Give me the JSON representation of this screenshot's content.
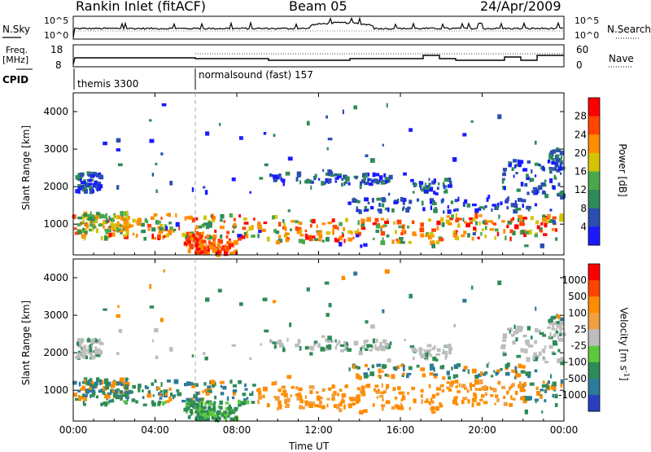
{
  "header": {
    "station": "Rankin Inlet (fitACF)",
    "beam": "Beam 05",
    "date": "24/Apr/2009"
  },
  "noise_panel": {
    "left_label": "N.Sky",
    "left_ticks": [
      "10^5",
      "10^0"
    ],
    "right_label": "N.Search",
    "right_ticks": [
      "10^5",
      "10^0"
    ]
  },
  "freq_panel": {
    "left_label_line1": "Freq.",
    "left_label_line2": "[MHz]",
    "left_ticks": [
      "18",
      "8"
    ],
    "right_label": "Nave",
    "right_ticks": [
      "60",
      "0"
    ]
  },
  "cpid": {
    "label": "CPID",
    "modes": [
      {
        "name": "themis 3300",
        "start_hour": 0
      },
      {
        "name": "normalsound (fast) 157",
        "start_hour": 6
      }
    ]
  },
  "chart_data": [
    {
      "type": "heatmap",
      "panel": "power",
      "ylabel": "Slant Range [km]",
      "yticks": [
        1000,
        2000,
        3000,
        4000
      ],
      "ylim": [
        180,
        4500
      ],
      "xlabel": "Time UT",
      "xticks": [
        "00:00",
        "04:00",
        "08:00",
        "12:00",
        "16:00",
        "20:00",
        "00:00"
      ],
      "xlim_hours": [
        0,
        24
      ],
      "colorbar_label": "Power [dB]",
      "colorbar_ticks": [
        "4",
        "8",
        "12",
        "16",
        "20",
        "24",
        "28"
      ],
      "colorbar_colors": [
        "#1a1aff",
        "#2a4fb0",
        "#2e8b57",
        "#4aa84a",
        "#d4c400",
        "#ff8c00",
        "#ff4500",
        "#ff0000"
      ]
    },
    {
      "type": "heatmap",
      "panel": "velocity",
      "ylabel": "Slant Range [km]",
      "yticks": [
        1000,
        2000,
        3000,
        4000
      ],
      "ylim": [
        180,
        4500
      ],
      "xlabel": "Time UT",
      "xticks": [
        "00:00",
        "04:00",
        "08:00",
        "12:00",
        "16:00",
        "20:00",
        "00:00"
      ],
      "xlim_hours": [
        0,
        24
      ],
      "colorbar_label": "Velocity [m s",
      "colorbar_label_sup": "-1",
      "colorbar_label_end": "]",
      "colorbar_ticks": [
        "1000",
        "500",
        "100",
        "25",
        "-25",
        "-100",
        "-500",
        "-1000"
      ],
      "colorbar_colors": [
        "#2a3fc0",
        "#2e7a9a",
        "#2e8b57",
        "#5cc93c",
        "#bdbdbd",
        "#f0a040",
        "#ff8c00",
        "#ff4500",
        "#ff0000"
      ]
    }
  ]
}
